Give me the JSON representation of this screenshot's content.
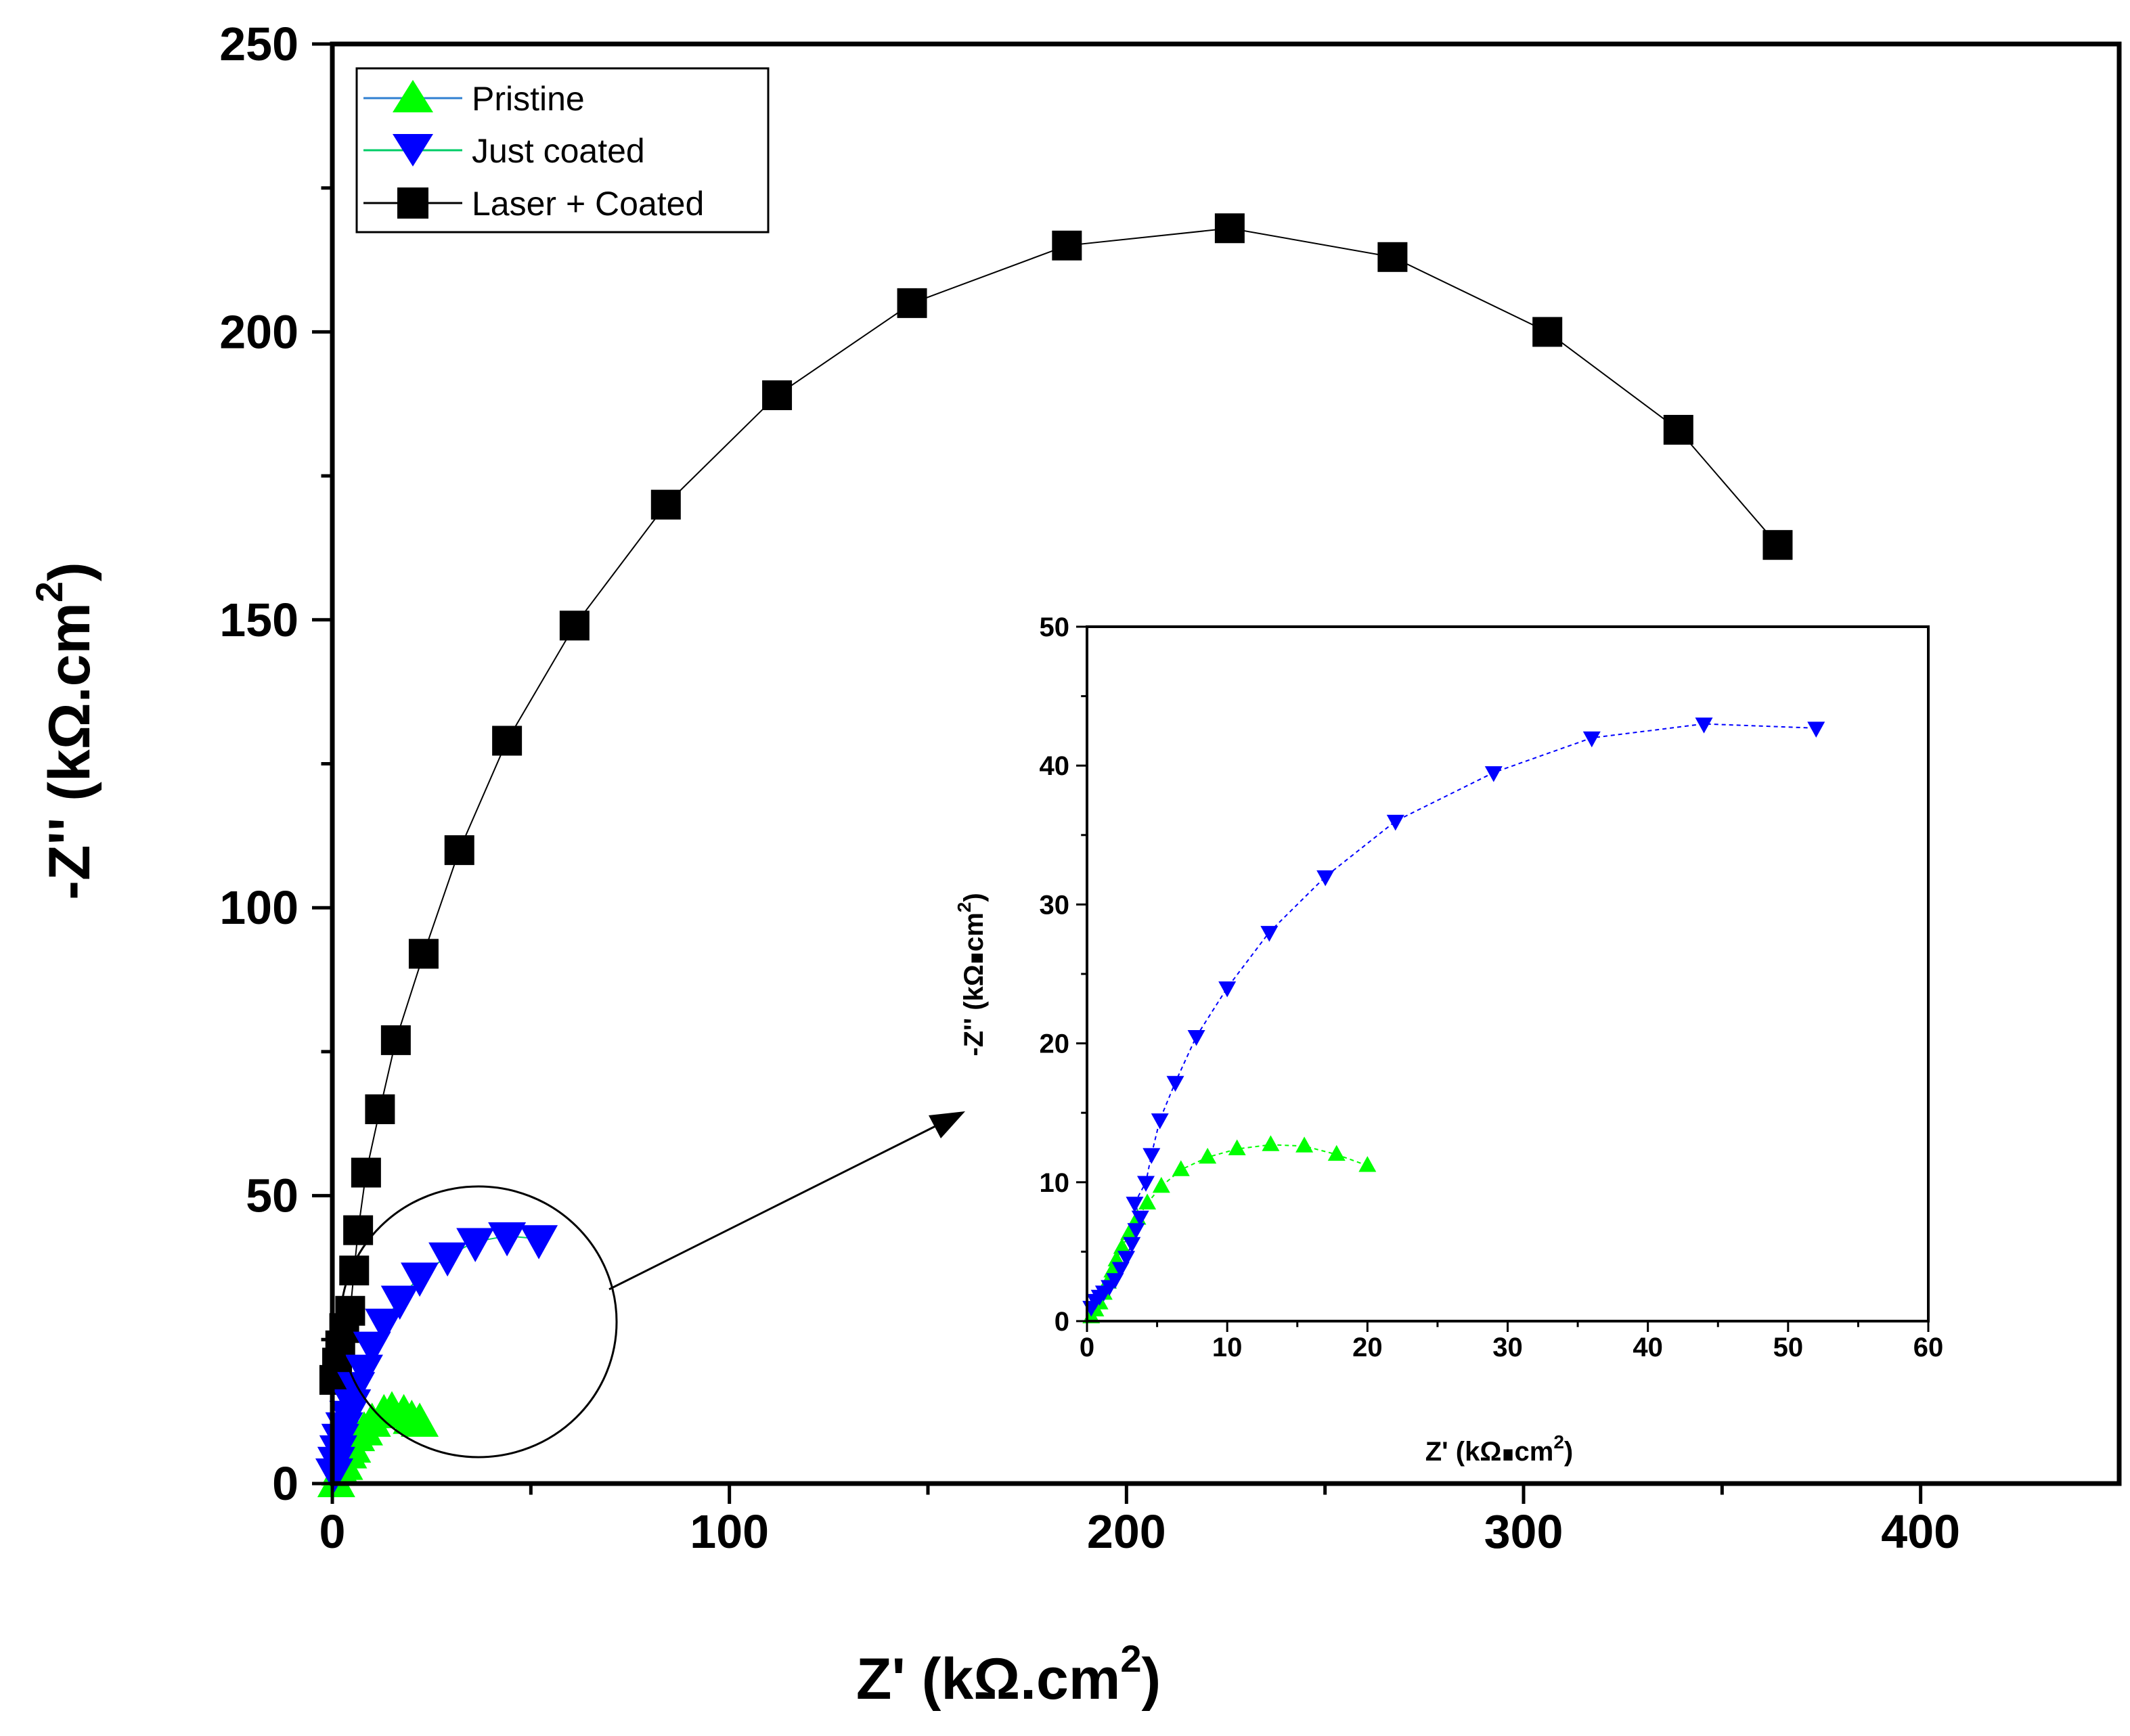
{
  "chart_data": [
    {
      "type": "scatter",
      "role": "main",
      "xlabel": "Z' (kΩ.cm",
      "xlabel_sup": "2",
      "xlabel_close": ")",
      "ylabel": "-Z'' (kΩ.cm",
      "ylabel_sup": "2",
      "ylabel_close": ")",
      "xlim": [
        0,
        450
      ],
      "ylim": [
        0,
        250
      ],
      "xticks": [
        "0",
        "100",
        "200",
        "300",
        "400"
      ],
      "yticks": [
        "0",
        "50",
        "100",
        "150",
        "200",
        "250"
      ],
      "legend_position": "top-left",
      "series": [
        {
          "name": "Pristine",
          "marker": "triangle-up",
          "color": "#00ff00",
          "line_color": "#2f7fd1",
          "points": [
            [
              1,
              0
            ],
            [
              2,
              2
            ],
            [
              3,
              3
            ],
            [
              4,
              5
            ],
            [
              5,
              6
            ],
            [
              6,
              8
            ],
            [
              8,
              9
            ],
            [
              10,
              10.5
            ],
            [
              13,
              12
            ],
            [
              15,
              12.5
            ],
            [
              18,
              12
            ],
            [
              20,
              11
            ],
            [
              22,
              10.5
            ]
          ]
        },
        {
          "name": "Just coated",
          "marker": "triangle-down",
          "color": "#0000ff",
          "line_color": "#00cc66",
          "points": [
            [
              0.5,
              2
            ],
            [
              1,
              4
            ],
            [
              1.5,
              6
            ],
            [
              2,
              8
            ],
            [
              3,
              10
            ],
            [
              4,
              12
            ],
            [
              5,
              14
            ],
            [
              6,
              17
            ],
            [
              8,
              20
            ],
            [
              10,
              24
            ],
            [
              13,
              28
            ],
            [
              17,
              32
            ],
            [
              22,
              36
            ],
            [
              29,
              39.5
            ],
            [
              36,
              42
            ],
            [
              44,
              43
            ],
            [
              52,
              42.5
            ]
          ]
        },
        {
          "name": "Laser + Coated",
          "marker": "square",
          "color": "#000000",
          "line_color": "#000000",
          "points": [
            [
              0.5,
              18
            ],
            [
              1.2,
              21
            ],
            [
              2,
              24
            ],
            [
              3,
              27
            ],
            [
              4.5,
              30
            ],
            [
              5.5,
              37
            ],
            [
              6.5,
              44
            ],
            [
              8.5,
              54
            ],
            [
              12,
              65
            ],
            [
              16,
              77
            ],
            [
              23,
              92
            ],
            [
              32,
              110
            ],
            [
              44,
              129
            ],
            [
              61,
              149
            ],
            [
              84,
              170
            ],
            [
              112,
              189
            ],
            [
              146,
              205
            ],
            [
              185,
              215
            ],
            [
              226,
              218
            ],
            [
              267,
              213
            ],
            [
              306,
              200
            ],
            [
              339,
              183
            ],
            [
              364,
              163
            ]
          ]
        }
      ],
      "annotation": "circle around low-frequency region with arrow pointing to inset"
    },
    {
      "type": "scatter",
      "role": "inset",
      "xlabel": "Z' (kΩ",
      "xlabel_dot": "∎",
      "xlabel_tail": "cm",
      "xlabel_sup": "2",
      "xlabel_close": ")",
      "ylabel": "-Z'' (kΩ",
      "ylabel_dot": "∎",
      "ylabel_tail": "cm",
      "ylabel_sup": "2",
      "ylabel_close": ")",
      "xlim": [
        0,
        60
      ],
      "ylim": [
        0,
        50
      ],
      "xticks": [
        "0",
        "10",
        "20",
        "30",
        "40",
        "50",
        "60"
      ],
      "yticks": [
        "0",
        "10",
        "20",
        "30",
        "40",
        "50"
      ],
      "series": [
        {
          "name": "Pristine",
          "marker": "triangle-up",
          "color": "#00ff00",
          "points": [
            [
              0.3,
              0.3
            ],
            [
              0.6,
              0.8
            ],
            [
              0.9,
              1.3
            ],
            [
              1.2,
              2
            ],
            [
              1.5,
              2.8
            ],
            [
              1.8,
              3.6
            ],
            [
              2.1,
              4.4
            ],
            [
              2.5,
              5.3
            ],
            [
              3,
              6.3
            ],
            [
              3.6,
              7.4
            ],
            [
              4.3,
              8.5
            ],
            [
              5.3,
              9.7
            ],
            [
              6.7,
              10.9
            ],
            [
              8.6,
              11.8
            ],
            [
              10.7,
              12.4
            ],
            [
              13.1,
              12.7
            ],
            [
              15.5,
              12.6
            ],
            [
              17.8,
              12
            ],
            [
              20,
              11.2
            ]
          ]
        },
        {
          "name": "Just coated",
          "marker": "triangle-down",
          "color": "#0000ff",
          "points": [
            [
              0.3,
              1
            ],
            [
              0.6,
              1.5
            ],
            [
              0.9,
              1.8
            ],
            [
              1.2,
              2.1
            ],
            [
              1.6,
              2.5
            ],
            [
              2,
              3
            ],
            [
              2.4,
              3.8
            ],
            [
              2.8,
              4.6
            ],
            [
              3.2,
              5.6
            ],
            [
              3.5,
              6.6
            ],
            [
              3.8,
              7.5
            ],
            [
              3.4,
              8.5
            ],
            [
              4.2,
              10
            ],
            [
              4.6,
              12
            ],
            [
              5.2,
              14.5
            ],
            [
              6.3,
              17.2
            ],
            [
              7.8,
              20.5
            ],
            [
              10,
              24
            ],
            [
              13,
              28
            ],
            [
              17,
              32
            ],
            [
              22,
              36
            ],
            [
              29,
              39.5
            ],
            [
              36,
              42
            ],
            [
              44,
              43
            ],
            [
              52,
              42.7
            ]
          ]
        }
      ]
    }
  ]
}
